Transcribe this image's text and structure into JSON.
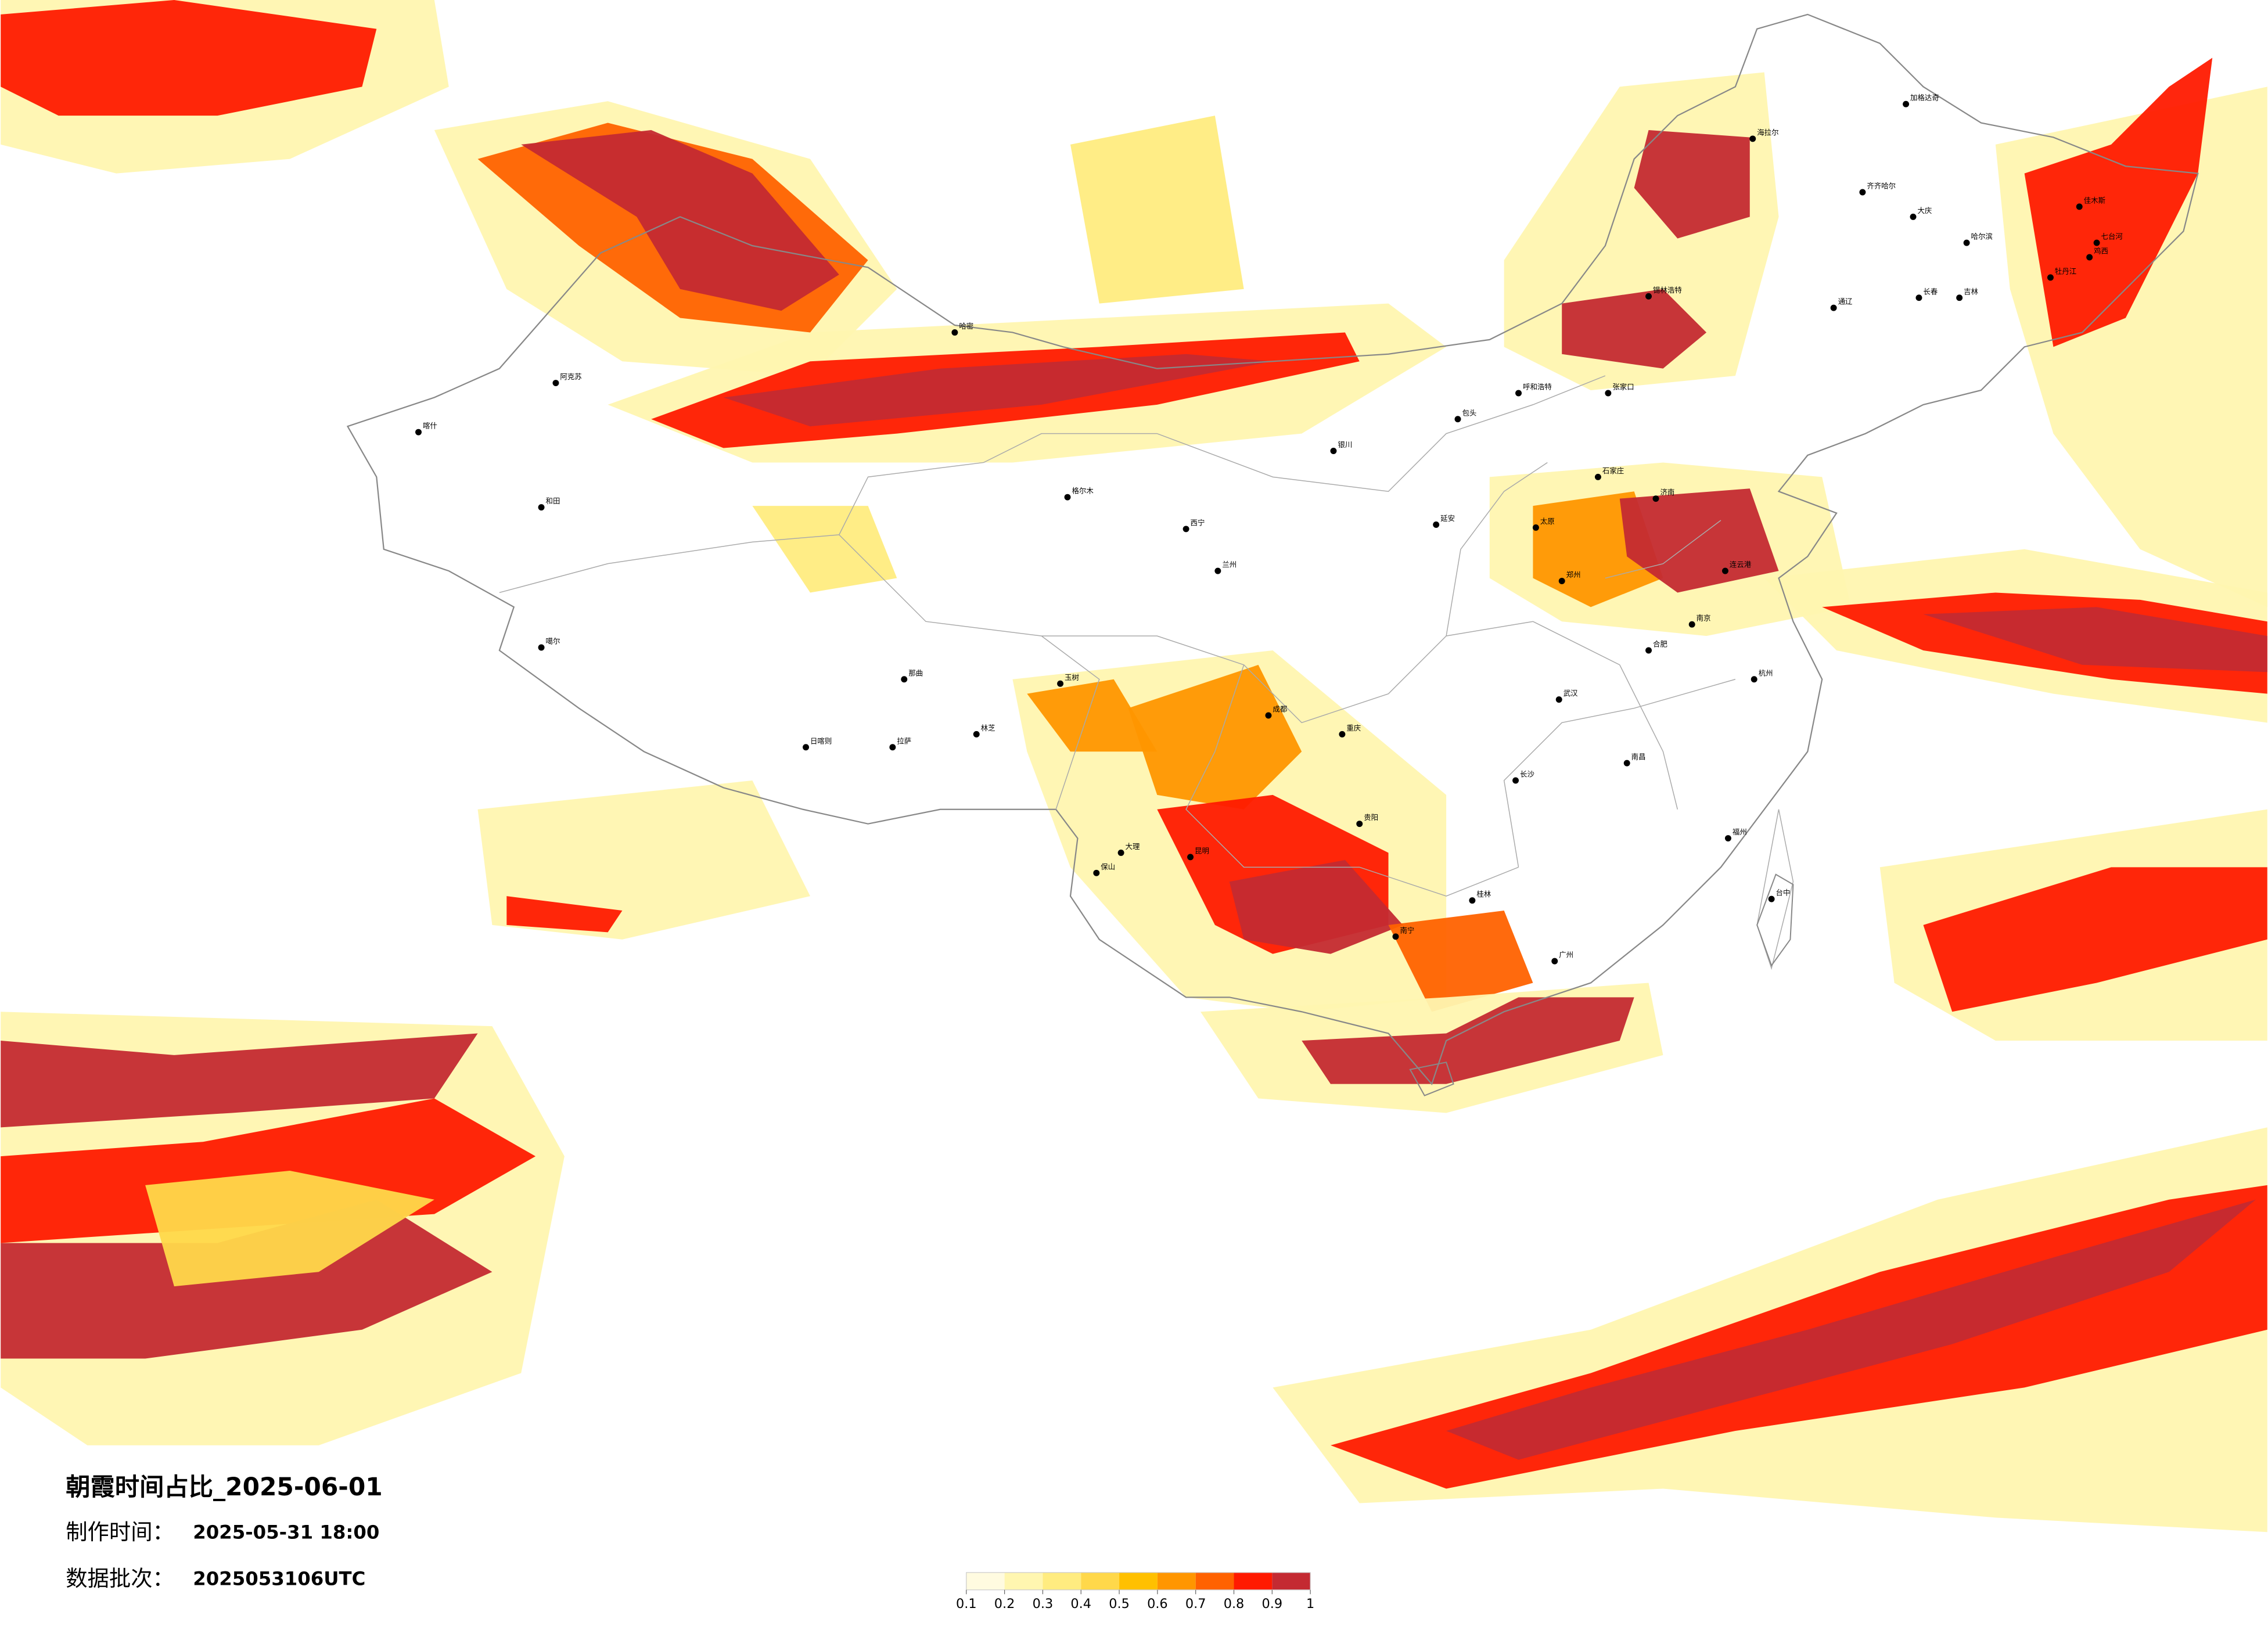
{
  "title": "朝霞时间占比_2025-06-01",
  "make_time": {
    "label": "制作时间：",
    "value": "2025-05-31 18:00"
  },
  "batch": {
    "label": "数据批次：",
    "value": "2025053106UTC"
  },
  "colorbar": {
    "colors": [
      "#fffbe0",
      "#fff6b0",
      "#ffec80",
      "#ffd84a",
      "#ffc000",
      "#ff9600",
      "#ff6200",
      "#ff1a00",
      "#c42a32"
    ],
    "ticks": [
      0.1,
      0.2,
      0.3,
      0.4,
      0.5,
      0.6,
      0.7,
      0.8,
      0.9,
      1
    ]
  },
  "cities": [
    "加格达奇",
    "海拉尔",
    "齐齐哈尔",
    "大庆",
    "哈尔滨",
    "佳木斯",
    "七台河",
    "鸡西",
    "牡丹江",
    "长春",
    "吉林",
    "通辽",
    "锡林浩特",
    "张家口",
    "呼和浩特",
    "包头",
    "石家庄",
    "太原",
    "延安",
    "银川",
    "西宁",
    "兰州",
    "格尔木",
    "哈密",
    "阿克苏",
    "喀什",
    "和田",
    "噶尔",
    "日喀则",
    "拉萨",
    "林芝",
    "那曲",
    "玉树",
    "成都",
    "重庆",
    "贵阳",
    "昆明",
    "大理",
    "保山",
    "南宁",
    "桂林",
    "广州",
    "长沙",
    "南昌",
    "福州",
    "台中",
    "武汉",
    "合肥",
    "南京",
    "郑州",
    "济南",
    "连云港",
    "杭州"
  ]
}
